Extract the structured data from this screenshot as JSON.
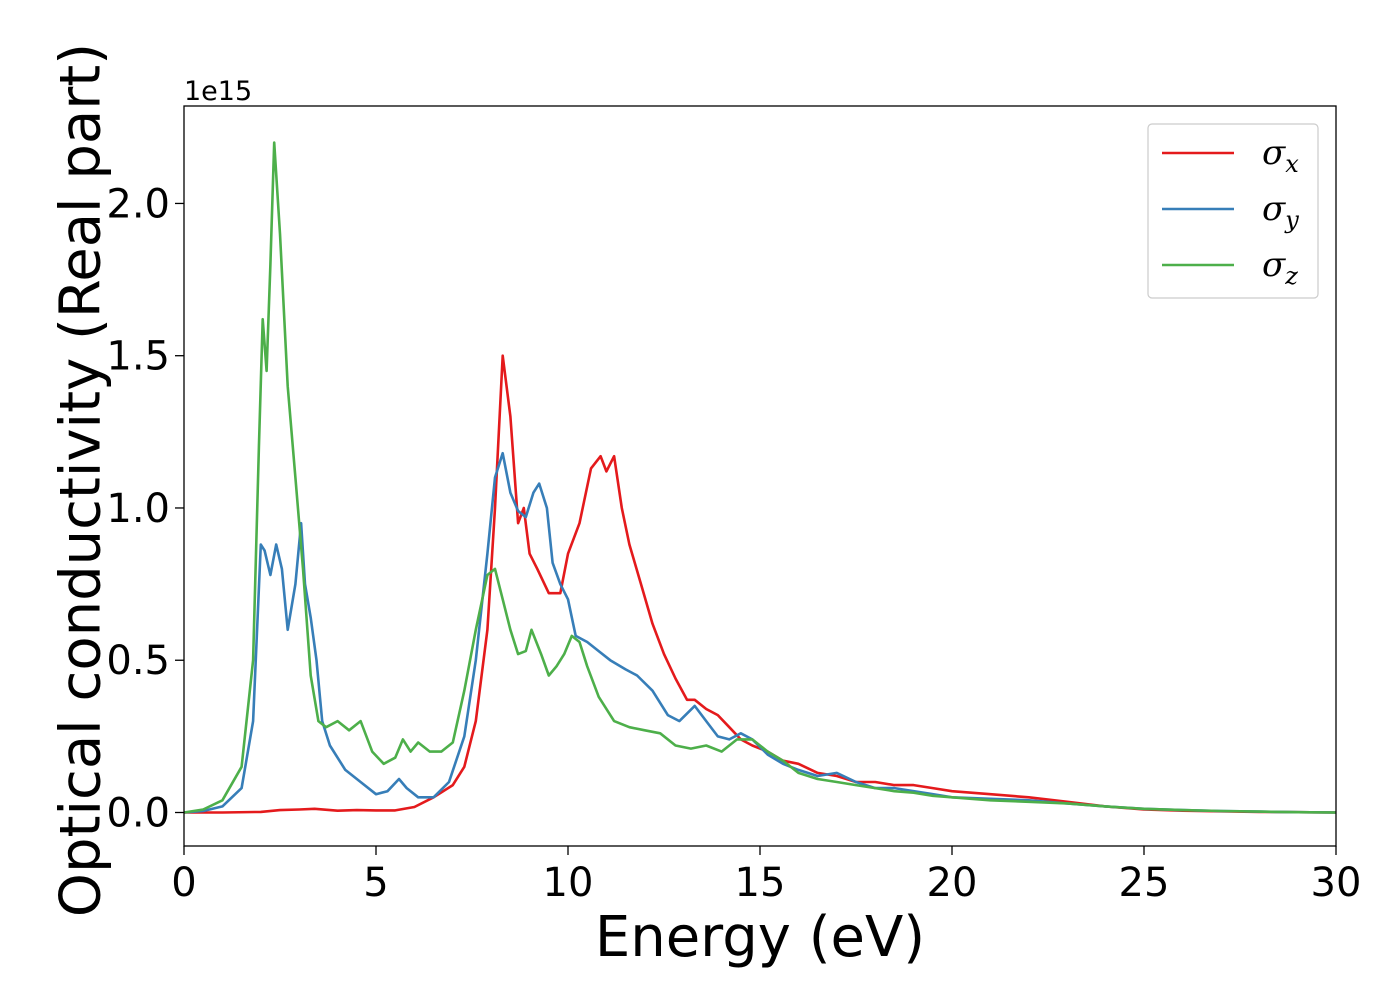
{
  "chart_data": {
    "type": "line",
    "xlabel": "Energy (eV)",
    "ylabel": "Optical conductivity (Real part)",
    "y_offset_text": "1e15",
    "y_scale": 1000000000000000.0,
    "xlim": [
      0,
      30
    ],
    "ylim": [
      -0.11,
      2.32
    ],
    "xticks": [
      0,
      5,
      10,
      15,
      20,
      25,
      30
    ],
    "xtick_labels": [
      "0",
      "5",
      "10",
      "15",
      "20",
      "25",
      "30"
    ],
    "yticks": [
      0.0,
      0.5,
      1.0,
      1.5,
      2.0
    ],
    "ytick_labels": [
      "0.0",
      "0.5",
      "1.0",
      "1.5",
      "2.0"
    ],
    "grid": false,
    "legend_position": "top-right",
    "series": [
      {
        "name": "σx",
        "symbol": "σ",
        "subscript": "x",
        "color": "#e41a1c",
        "x": [
          0,
          1,
          2,
          2.5,
          3,
          3.4,
          4,
          4.5,
          5,
          5.5,
          6,
          6.5,
          7,
          7.3,
          7.6,
          7.9,
          8.1,
          8.3,
          8.5,
          8.7,
          8.85,
          9,
          9.2,
          9.5,
          9.8,
          10,
          10.3,
          10.6,
          10.85,
          11,
          11.2,
          11.4,
          11.6,
          11.9,
          12.2,
          12.5,
          12.8,
          13.1,
          13.3,
          13.6,
          13.9,
          14.2,
          14.5,
          14.8,
          15.2,
          15.6,
          16,
          16.5,
          17,
          17.5,
          18,
          18.5,
          19,
          19.5,
          20,
          21,
          22,
          23,
          24,
          25,
          26,
          27,
          28,
          29,
          30
        ],
        "y": [
          0,
          0,
          0.002,
          0.008,
          0.01,
          0.012,
          0.006,
          0.008,
          0.007,
          0.007,
          0.018,
          0.05,
          0.09,
          0.15,
          0.3,
          0.6,
          1.0,
          1.5,
          1.3,
          0.95,
          1.0,
          0.85,
          0.8,
          0.72,
          0.72,
          0.85,
          0.95,
          1.13,
          1.17,
          1.12,
          1.17,
          1.0,
          0.88,
          0.75,
          0.62,
          0.52,
          0.44,
          0.37,
          0.37,
          0.34,
          0.32,
          0.28,
          0.24,
          0.22,
          0.2,
          0.17,
          0.16,
          0.13,
          0.12,
          0.1,
          0.1,
          0.09,
          0.09,
          0.08,
          0.07,
          0.06,
          0.05,
          0.035,
          0.02,
          0.01,
          0.006,
          0.004,
          0.002,
          0.001,
          0
        ]
      },
      {
        "name": "σy",
        "symbol": "σ",
        "subscript": "y",
        "color": "#377eb8",
        "x": [
          0,
          0.5,
          1,
          1.5,
          1.8,
          2,
          2.1,
          2.25,
          2.4,
          2.55,
          2.7,
          2.9,
          3.05,
          3.15,
          3.3,
          3.45,
          3.6,
          3.8,
          4.2,
          4.6,
          5,
          5.3,
          5.6,
          5.8,
          6.1,
          6.5,
          6.9,
          7.3,
          7.6,
          7.9,
          8.1,
          8.3,
          8.5,
          8.7,
          8.9,
          9.1,
          9.25,
          9.45,
          9.6,
          9.8,
          10,
          10.2,
          10.5,
          10.8,
          11.1,
          11.5,
          11.8,
          12.2,
          12.6,
          12.9,
          13.3,
          13.6,
          13.9,
          14.2,
          14.5,
          14.8,
          15.2,
          15.6,
          16,
          16.5,
          17,
          17.5,
          18,
          18.5,
          19,
          19.5,
          20,
          21,
          22,
          23,
          24,
          25,
          26,
          27,
          28,
          29,
          30
        ],
        "y": [
          0,
          0.005,
          0.02,
          0.08,
          0.3,
          0.88,
          0.86,
          0.78,
          0.88,
          0.8,
          0.6,
          0.75,
          0.95,
          0.75,
          0.64,
          0.5,
          0.3,
          0.22,
          0.14,
          0.1,
          0.06,
          0.07,
          0.11,
          0.08,
          0.05,
          0.05,
          0.1,
          0.25,
          0.5,
          0.85,
          1.1,
          1.18,
          1.05,
          0.99,
          0.97,
          1.05,
          1.08,
          1.0,
          0.82,
          0.75,
          0.7,
          0.58,
          0.56,
          0.53,
          0.5,
          0.47,
          0.45,
          0.4,
          0.32,
          0.3,
          0.35,
          0.3,
          0.25,
          0.24,
          0.26,
          0.24,
          0.19,
          0.16,
          0.14,
          0.12,
          0.13,
          0.1,
          0.08,
          0.08,
          0.07,
          0.06,
          0.05,
          0.045,
          0.04,
          0.03,
          0.02,
          0.012,
          0.008,
          0.005,
          0.003,
          0.001,
          0
        ]
      },
      {
        "name": "σz",
        "symbol": "σ",
        "subscript": "z",
        "color": "#4daf4a",
        "x": [
          0,
          0.5,
          1,
          1.5,
          1.8,
          1.95,
          2.05,
          2.15,
          2.25,
          2.35,
          2.5,
          2.7,
          2.9,
          3.1,
          3.3,
          3.5,
          3.7,
          4,
          4.3,
          4.6,
          4.9,
          5.2,
          5.5,
          5.7,
          5.9,
          6.1,
          6.4,
          6.7,
          7,
          7.3,
          7.6,
          7.9,
          8.1,
          8.3,
          8.5,
          8.7,
          8.9,
          9.05,
          9.3,
          9.5,
          9.7,
          9.9,
          10.1,
          10.3,
          10.5,
          10.8,
          11.2,
          11.6,
          12,
          12.4,
          12.8,
          13.2,
          13.6,
          14,
          14.4,
          14.8,
          15.2,
          15.6,
          16,
          16.5,
          17,
          17.5,
          18,
          18.5,
          19,
          19.5,
          20,
          21,
          22,
          23,
          24,
          25,
          26,
          27,
          28,
          29,
          30
        ],
        "y": [
          0,
          0.01,
          0.04,
          0.15,
          0.5,
          1.2,
          1.62,
          1.45,
          1.8,
          2.2,
          1.9,
          1.4,
          1.1,
          0.8,
          0.45,
          0.3,
          0.28,
          0.3,
          0.27,
          0.3,
          0.2,
          0.16,
          0.18,
          0.24,
          0.2,
          0.23,
          0.2,
          0.2,
          0.23,
          0.4,
          0.6,
          0.78,
          0.8,
          0.7,
          0.6,
          0.52,
          0.53,
          0.6,
          0.52,
          0.45,
          0.48,
          0.52,
          0.58,
          0.56,
          0.48,
          0.38,
          0.3,
          0.28,
          0.27,
          0.26,
          0.22,
          0.21,
          0.22,
          0.2,
          0.24,
          0.24,
          0.2,
          0.17,
          0.13,
          0.11,
          0.1,
          0.09,
          0.08,
          0.07,
          0.065,
          0.055,
          0.05,
          0.04,
          0.035,
          0.03,
          0.02,
          0.012,
          0.008,
          0.005,
          0.003,
          0.001,
          0
        ]
      }
    ]
  }
}
